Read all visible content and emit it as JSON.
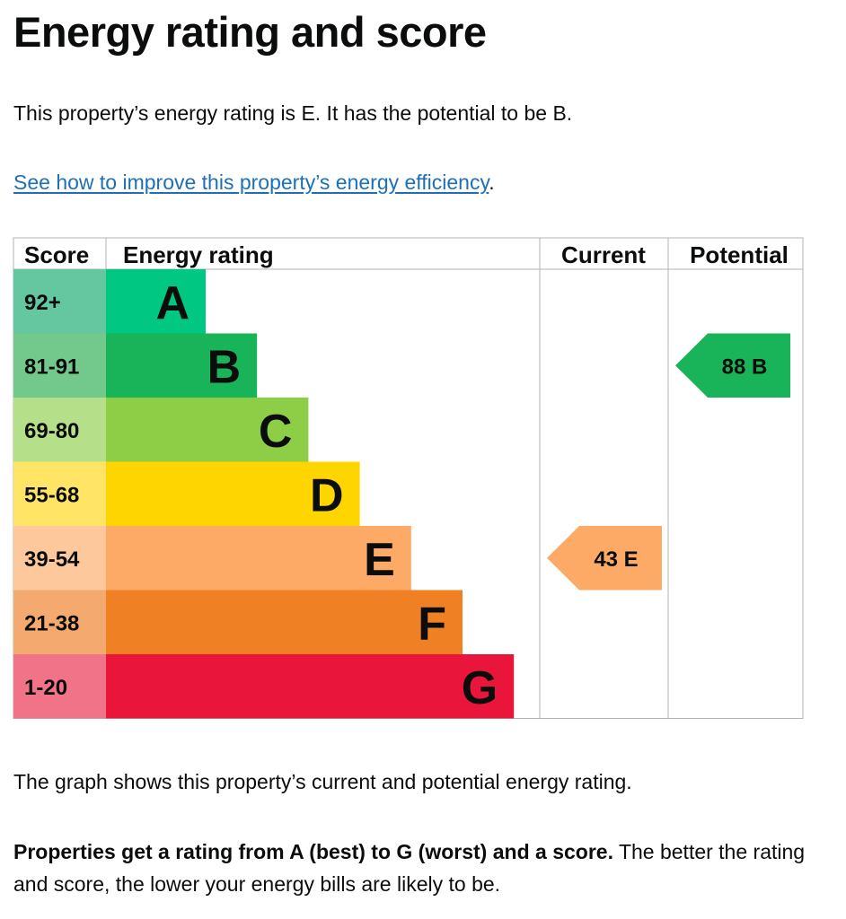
{
  "title": "Energy rating and score",
  "intro": "This property’s energy rating is E. It has the potential to be B.",
  "link": {
    "text": "See how to improve this property’s energy efficiency",
    "suffix": "."
  },
  "chart_data": {
    "type": "bar",
    "headers": {
      "score": "Score",
      "rating": "Energy rating",
      "current": "Current",
      "potential": "Potential"
    },
    "bands": [
      {
        "letter": "A",
        "range": "92+",
        "color": "#00c781",
        "score_color": "#64c7a0"
      },
      {
        "letter": "B",
        "range": "81-91",
        "color": "#19b459",
        "score_color": "#72c98b"
      },
      {
        "letter": "C",
        "range": "69-80",
        "color": "#8dce46",
        "score_color": "#b6df8a"
      },
      {
        "letter": "D",
        "range": "55-68",
        "color": "#ffd500",
        "score_color": "#ffe466"
      },
      {
        "letter": "E",
        "range": "39-54",
        "color": "#fcaa65",
        "score_color": "#fdc89b"
      },
      {
        "letter": "F",
        "range": "21-38",
        "color": "#ef8023",
        "score_color": "#f4aa6e"
      },
      {
        "letter": "G",
        "range": "1-20",
        "color": "#e9153b",
        "score_color": "#f07387"
      }
    ],
    "current": {
      "score": 43,
      "letter": "E",
      "label": "43  E"
    },
    "potential": {
      "score": 88,
      "letter": "B",
      "label": "88  B"
    }
  },
  "caption": "The graph shows this property’s current and potential energy rating.",
  "explain": {
    "bold": "Properties get a rating from A (best) to G (worst) and a score.",
    "rest": " The better the rating and score, the lower your energy bills are likely to be."
  }
}
